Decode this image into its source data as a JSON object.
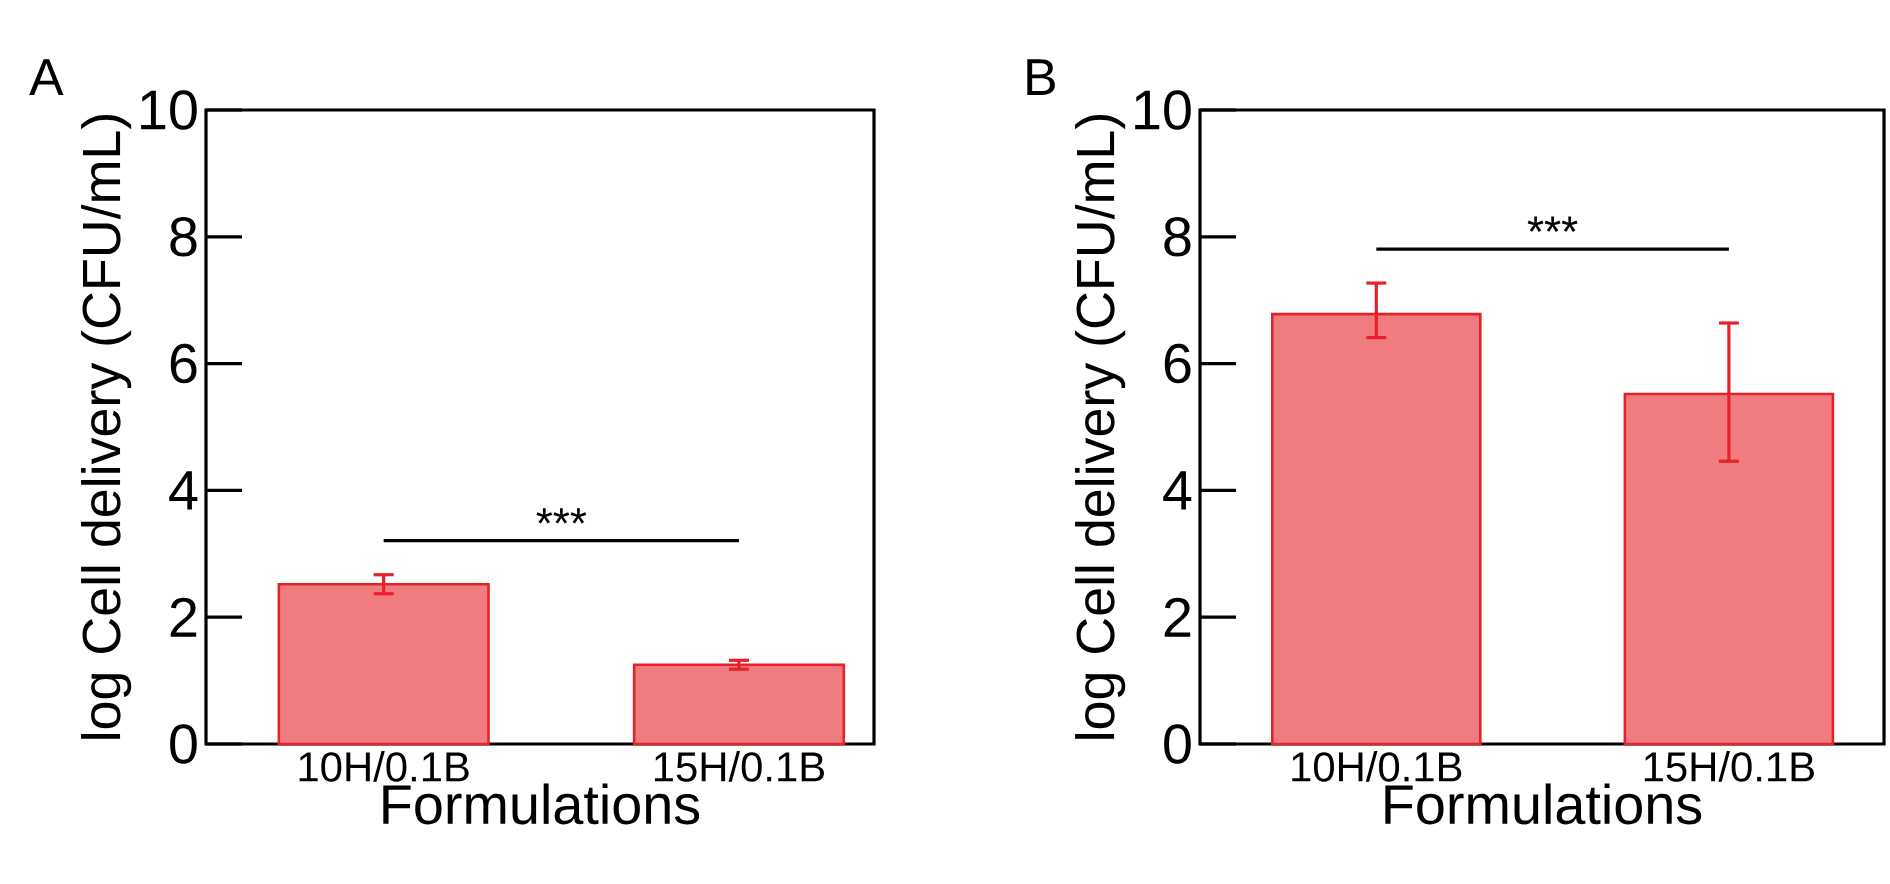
{
  "chart_data": [
    {
      "type": "bar",
      "title": "A",
      "xlabel": "Formulations",
      "ylabel": "log Cell delivery (CFU/mL)",
      "categories": [
        "10H/0.1B",
        "15H/0.1B"
      ],
      "values": [
        2.52,
        1.25
      ],
      "errors": [
        0.15,
        0.07
      ],
      "color": "#f07c80",
      "ylim": [
        0,
        10
      ],
      "yticks": [
        0,
        2,
        4,
        6,
        8,
        10
      ],
      "annotations": [
        "***"
      ]
    },
    {
      "type": "bar",
      "title": "B",
      "xlabel": "Formulations",
      "ylabel": "log Cell delivery (CFU/mL)",
      "categories": [
        "10H/0.1B",
        "15H/0.1B"
      ],
      "values": [
        6.78,
        5.52
      ],
      "errors": [
        [
          6.41,
          7.27
        ],
        [
          4.46,
          6.64
        ]
      ],
      "color": "#f07c80",
      "ylim": [
        0,
        10
      ],
      "yticks": [
        0,
        2,
        4,
        6,
        8,
        10
      ],
      "annotations": [
        "***"
      ]
    }
  ]
}
